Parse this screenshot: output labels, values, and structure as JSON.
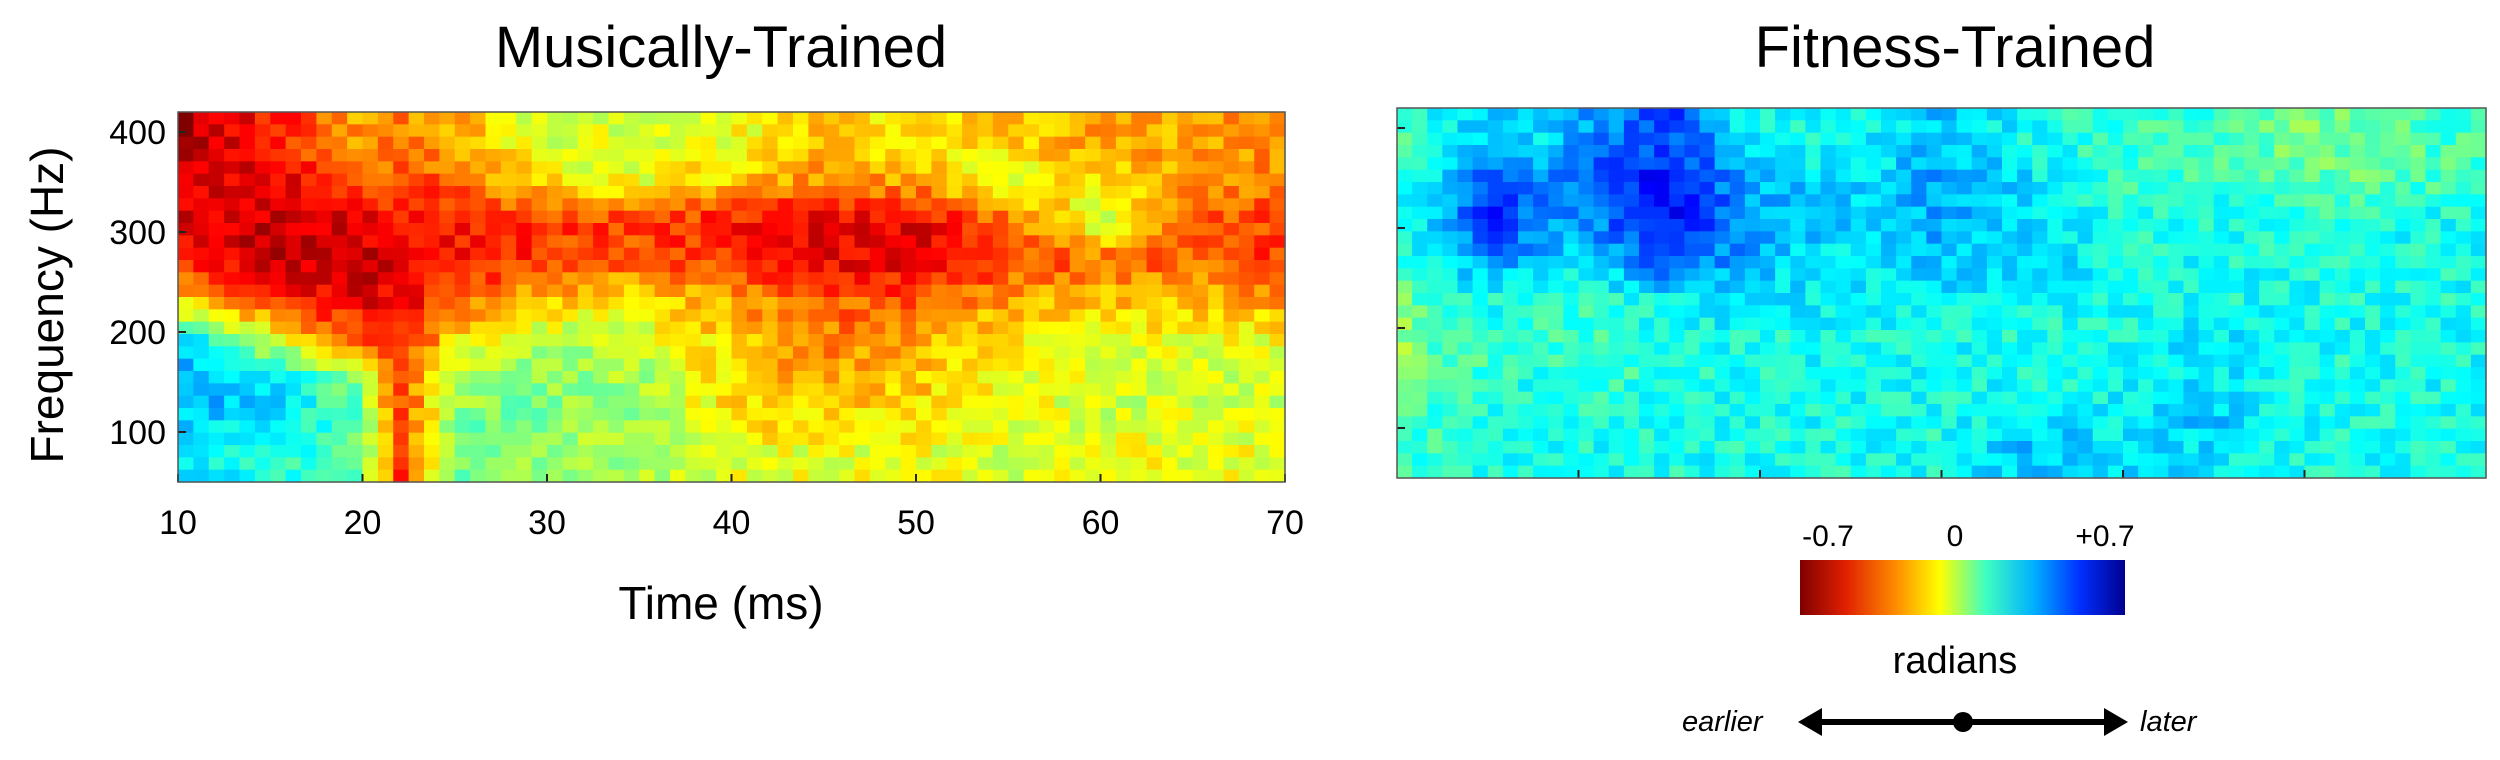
{
  "chart_data": [
    {
      "type": "heatmap",
      "title": "Musically-Trained",
      "xlabel": "Time (ms)",
      "ylabel": "Frequency (Hz)",
      "xlim": [
        10,
        70
      ],
      "ylim": [
        50,
        420
      ],
      "xticks": [
        10,
        20,
        30,
        40,
        50,
        60,
        70
      ],
      "yticks": [
        100,
        200,
        300,
        400
      ],
      "colorscale": "jet-reversed",
      "value_range": [
        -0.7,
        0.7
      ],
      "time_ms": [
        10,
        15,
        20,
        22,
        25,
        30,
        35,
        40,
        45,
        50,
        55,
        60,
        65,
        70
      ],
      "frequency_hz": [
        80,
        110,
        150,
        190,
        230,
        270,
        310,
        350,
        390
      ],
      "values": [
        [
          0.2,
          0.15,
          0.05,
          -0.45,
          0.05,
          -0.05,
          -0.05,
          -0.15,
          -0.15,
          -0.15,
          -0.12,
          -0.15,
          -0.15,
          -0.15
        ],
        [
          0.25,
          0.2,
          0.05,
          -0.45,
          0.0,
          0.0,
          -0.05,
          -0.2,
          -0.22,
          -0.2,
          -0.15,
          -0.12,
          -0.12,
          -0.12
        ],
        [
          0.3,
          0.25,
          0.0,
          -0.45,
          -0.05,
          0.0,
          -0.05,
          -0.22,
          -0.3,
          -0.25,
          -0.18,
          -0.1,
          -0.1,
          -0.1
        ],
        [
          0.25,
          -0.1,
          -0.4,
          -0.5,
          -0.2,
          -0.05,
          -0.1,
          -0.25,
          -0.35,
          -0.3,
          -0.2,
          -0.15,
          -0.15,
          -0.15
        ],
        [
          -0.2,
          -0.45,
          -0.55,
          -0.55,
          -0.4,
          -0.25,
          -0.2,
          -0.3,
          -0.4,
          -0.4,
          -0.3,
          -0.25,
          -0.25,
          -0.3
        ],
        [
          -0.5,
          -0.6,
          -0.6,
          -0.55,
          -0.5,
          -0.45,
          -0.4,
          -0.45,
          -0.55,
          -0.55,
          -0.45,
          -0.4,
          -0.4,
          -0.45
        ],
        [
          -0.55,
          -0.6,
          -0.55,
          -0.5,
          -0.5,
          -0.45,
          -0.45,
          -0.5,
          -0.55,
          -0.55,
          -0.4,
          -0.1,
          -0.4,
          -0.45
        ],
        [
          -0.6,
          -0.55,
          -0.45,
          -0.4,
          -0.4,
          -0.2,
          -0.15,
          -0.25,
          -0.35,
          -0.3,
          -0.1,
          -0.25,
          -0.3,
          -0.35
        ],
        [
          -0.65,
          -0.5,
          -0.3,
          -0.35,
          -0.3,
          -0.1,
          -0.15,
          -0.15,
          -0.25,
          -0.2,
          -0.25,
          -0.3,
          -0.3,
          -0.35
        ]
      ]
    },
    {
      "type": "heatmap",
      "title": "Fitness-Trained",
      "xlabel": "",
      "ylabel": "",
      "xlim": [
        10,
        70
      ],
      "ylim": [
        50,
        420
      ],
      "xticks": [
        20,
        30,
        40,
        50,
        60
      ],
      "yticks": [
        100,
        200,
        300,
        400
      ],
      "colorscale": "jet-reversed",
      "value_range": [
        -0.7,
        0.7
      ],
      "time_ms": [
        10,
        12,
        15,
        18,
        20,
        22,
        25,
        30,
        35,
        40,
        45,
        50,
        55,
        60,
        65,
        70
      ],
      "frequency_hz": [
        80,
        110,
        150,
        190,
        230,
        270,
        310,
        350,
        390
      ],
      "values": [
        [
          0.1,
          0.1,
          0.15,
          0.15,
          0.15,
          0.15,
          0.15,
          0.15,
          0.15,
          0.15,
          0.25,
          0.2,
          0.2,
          0.15,
          0.15,
          0.15
        ],
        [
          0.05,
          0.1,
          0.15,
          0.15,
          0.15,
          0.15,
          0.15,
          0.15,
          0.15,
          0.15,
          0.2,
          0.2,
          0.25,
          0.15,
          0.15,
          0.15
        ],
        [
          0.0,
          0.05,
          0.1,
          0.15,
          0.1,
          0.1,
          0.15,
          0.15,
          0.15,
          0.15,
          0.15,
          0.15,
          0.2,
          0.15,
          0.15,
          0.15
        ],
        [
          -0.05,
          0.05,
          0.1,
          0.1,
          0.1,
          0.05,
          0.15,
          0.15,
          0.15,
          0.15,
          0.15,
          0.15,
          0.2,
          0.15,
          0.15,
          0.15
        ],
        [
          0.0,
          0.1,
          0.15,
          0.15,
          0.1,
          0.15,
          0.2,
          0.2,
          0.2,
          0.2,
          0.15,
          0.15,
          0.15,
          0.15,
          0.15,
          0.15
        ],
        [
          0.1,
          0.2,
          0.35,
          0.25,
          0.2,
          0.3,
          0.45,
          0.25,
          0.2,
          0.25,
          0.25,
          0.15,
          0.15,
          0.15,
          0.15,
          0.15
        ],
        [
          0.15,
          0.25,
          0.5,
          0.35,
          0.3,
          0.4,
          0.55,
          0.3,
          0.25,
          0.3,
          0.2,
          0.15,
          0.15,
          0.1,
          0.15,
          0.15
        ],
        [
          0.1,
          0.2,
          0.4,
          0.35,
          0.35,
          0.45,
          0.5,
          0.25,
          0.2,
          0.3,
          0.2,
          0.1,
          0.1,
          0.05,
          0.05,
          0.1
        ],
        [
          0.05,
          0.15,
          0.25,
          0.2,
          0.3,
          0.35,
          0.45,
          0.15,
          0.15,
          0.25,
          0.15,
          0.1,
          0.1,
          0.0,
          0.05,
          0.1
        ]
      ]
    }
  ],
  "colorbar": {
    "min_label": "-0.7",
    "mid_label": "0",
    "max_label": "+0.7",
    "unit": "radians",
    "left_direction": "earlier",
    "right_direction": "later"
  }
}
